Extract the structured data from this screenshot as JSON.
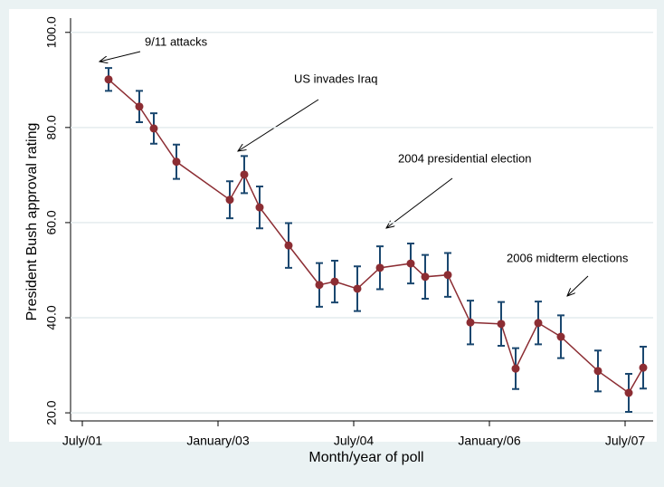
{
  "chart_data": {
    "type": "line",
    "x_label": "Month/year of poll",
    "y_label": "President Bush approval rating",
    "annotations": [
      "9/11 attacks",
      "US invades Iraq",
      "2004 presidential election",
      "2006 midterm elections"
    ],
    "xlim": [
      2001.37,
      2007.81
    ],
    "xticks": [
      {
        "value": 2001.5,
        "label": "July/01"
      },
      {
        "value": 2003.0,
        "label": "January/03"
      },
      {
        "value": 2004.5,
        "label": "July/04"
      },
      {
        "value": 2006.0,
        "label": "January/06"
      },
      {
        "value": 2007.5,
        "label": "July/07"
      }
    ],
    "ylim": [
      18.3,
      103.0
    ],
    "yticks": [
      {
        "value": 20,
        "label": "20.0"
      },
      {
        "value": 40,
        "label": "40.0"
      },
      {
        "value": 60,
        "label": "60.0"
      },
      {
        "value": 80,
        "label": "80.0"
      },
      {
        "value": 100,
        "label": "100.0"
      }
    ],
    "grid": true,
    "series": [
      {
        "color": "#8c2d33",
        "error_color": "#1a476f",
        "x": [
          2001.79,
          2002.13,
          2002.29,
          2002.54,
          2003.13,
          2003.29,
          2003.46,
          2003.78,
          2004.12,
          2004.29,
          2004.54,
          2004.79,
          2005.13,
          2005.29,
          2005.54,
          2005.79,
          2006.13,
          2006.29,
          2006.54,
          2006.79,
          2007.2,
          2007.54,
          2007.7
        ],
        "values": [
          90.1,
          84.4,
          79.8,
          72.8,
          64.8,
          70.1,
          63.2,
          55.2,
          46.9,
          47.6,
          46.1,
          50.5,
          51.4,
          48.6,
          49.0,
          39.0,
          38.7,
          29.3,
          38.9,
          36.0,
          28.8,
          24.2,
          29.5
        ],
        "errors": [
          2.4,
          3.3,
          3.2,
          3.6,
          3.9,
          3.9,
          4.4,
          4.7,
          4.6,
          4.4,
          4.7,
          4.5,
          4.2,
          4.6,
          4.6,
          4.6,
          4.6,
          4.3,
          4.5,
          4.5,
          4.3,
          4.0,
          4.4
        ]
      }
    ]
  }
}
